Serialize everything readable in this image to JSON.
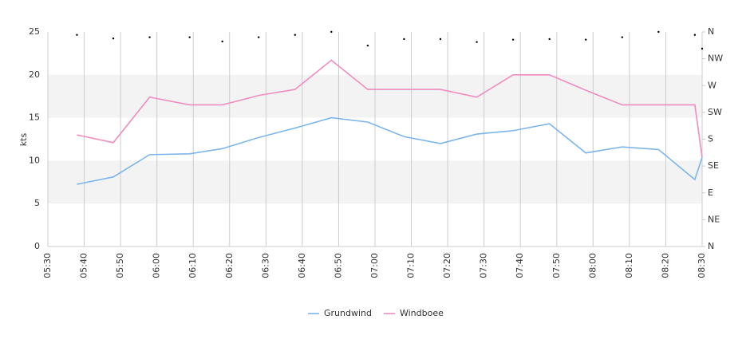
{
  "chart_data": {
    "type": "line",
    "y_label": "kts",
    "x": [
      "05:38",
      "05:48",
      "05:58",
      "06:09",
      "06:18",
      "06:28",
      "06:38",
      "06:48",
      "06:58",
      "07:08",
      "07:18",
      "07:28",
      "07:38",
      "07:48",
      "07:58",
      "08:08",
      "08:18",
      "08:28",
      "08:30"
    ],
    "series": [
      {
        "name": "Grundwind",
        "color": "#7cb5ec",
        "values": [
          7.25,
          8.1,
          10.7,
          10.8,
          11.4,
          12.7,
          13.8,
          15.0,
          14.5,
          12.8,
          12.0,
          13.1,
          13.5,
          14.3,
          10.9,
          11.6,
          11.3,
          7.8,
          10.4
        ]
      },
      {
        "name": "Windboee",
        "color": "#f08cbf",
        "values": [
          13.0,
          12.1,
          17.4,
          16.5,
          16.5,
          17.6,
          18.3,
          21.7,
          18.3,
          18.3,
          18.3,
          17.4,
          20.0,
          20.0,
          18.2,
          16.5,
          16.5,
          16.5,
          10.4
        ]
      }
    ],
    "direction": {
      "axis": "y2",
      "color": "#000000",
      "values": [
        355,
        349,
        351,
        351,
        344,
        351,
        355,
        360,
        337,
        348,
        348,
        343,
        347,
        348,
        347,
        351,
        360,
        355,
        332
      ]
    },
    "xlim": [
      "05:30",
      "08:30"
    ],
    "xticks": [
      "05:30",
      "05:40",
      "05:50",
      "06:00",
      "06:10",
      "06:20",
      "06:30",
      "06:40",
      "06:50",
      "07:00",
      "07:10",
      "07:20",
      "07:30",
      "07:40",
      "07:50",
      "08:00",
      "08:10",
      "08:20",
      "08:30"
    ],
    "ylim": [
      0,
      25
    ],
    "yticks": [
      0,
      5,
      10,
      15,
      20,
      25
    ],
    "y2lim": [
      0,
      360
    ],
    "y2ticks": [
      {
        "value": 0,
        "label": "N"
      },
      {
        "value": 45,
        "label": "NE"
      },
      {
        "value": 90,
        "label": "E"
      },
      {
        "value": 135,
        "label": "SE"
      },
      {
        "value": 180,
        "label": "S"
      },
      {
        "value": 225,
        "label": "SW"
      },
      {
        "value": 270,
        "label": "W"
      },
      {
        "value": 315,
        "label": "NW"
      },
      {
        "value": 360,
        "label": "N"
      }
    ],
    "grid": true,
    "alternate_bands": true,
    "legend": "bottom"
  }
}
